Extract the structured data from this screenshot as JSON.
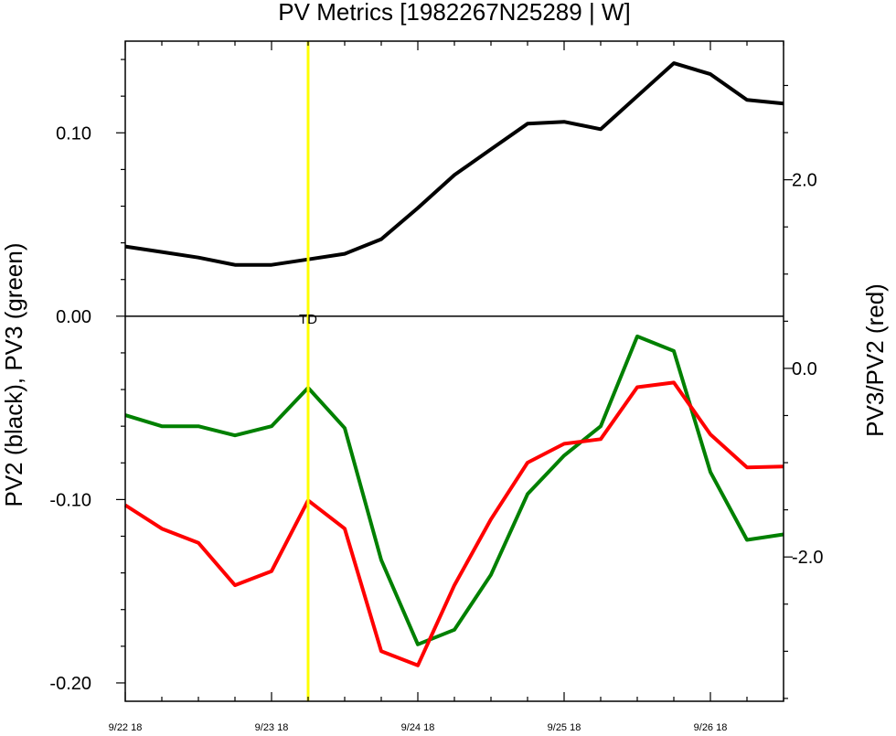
{
  "chart_data": {
    "type": "line",
    "title": "PV Metrics [1982267N25289 | W]",
    "ylabel_left": "PV2 (black), PV3 (green)",
    "ylabel_right": "PV3/PV2 (red)",
    "x_ticks": [
      "9/22 18",
      "9/23 18",
      "9/24 18",
      "9/25 18",
      "9/26 18"
    ],
    "x_range_hours": [
      0,
      108
    ],
    "x_step_hours": 6,
    "left_axis": {
      "ylim": [
        -0.21,
        0.15
      ],
      "ticks": [
        0.1,
        0.0,
        -0.1,
        -0.2
      ],
      "tick_labels": [
        "0.10",
        "0.00",
        "-0.10",
        "-0.20"
      ],
      "minor_step": 0.02
    },
    "right_axis": {
      "ylim": [
        -3.53,
        3.47
      ],
      "ticks": [
        2.0,
        0.0,
        -2.0
      ],
      "tick_labels": [
        "2.0",
        "0.0",
        "-2.0"
      ],
      "minor_step": 0.5
    },
    "reference_line": {
      "axis": "left",
      "y": 0.0,
      "color": "#000000"
    },
    "marker": {
      "x_hours": 30,
      "label": "TD",
      "color": "#ffff00"
    },
    "series": [
      {
        "axis": "left",
        "color": "#000000",
        "values": [
          0.038,
          0.035,
          0.032,
          0.028,
          0.028,
          0.031,
          0.034,
          0.042,
          0.059,
          0.077,
          0.091,
          0.105,
          0.106,
          0.102,
          0.12,
          0.138,
          0.132,
          0.118,
          0.116
        ]
      },
      {
        "axis": "left",
        "color": "#008000",
        "values": [
          -0.054,
          -0.06,
          -0.06,
          -0.065,
          -0.06,
          -0.039,
          -0.061,
          -0.133,
          -0.179,
          -0.171,
          -0.141,
          -0.097,
          -0.076,
          -0.06,
          -0.011,
          -0.019,
          -0.085,
          -0.122,
          -0.119
        ]
      },
      {
        "axis": "right",
        "color": "#ff0000",
        "values": [
          -1.45,
          -1.7,
          -1.85,
          -2.3,
          -2.15,
          -1.4,
          -1.7,
          -3.0,
          -3.15,
          -2.3,
          -1.6,
          -1.0,
          -0.8,
          -0.75,
          -0.2,
          -0.15,
          -0.7,
          -1.05,
          -1.04
        ]
      }
    ]
  }
}
